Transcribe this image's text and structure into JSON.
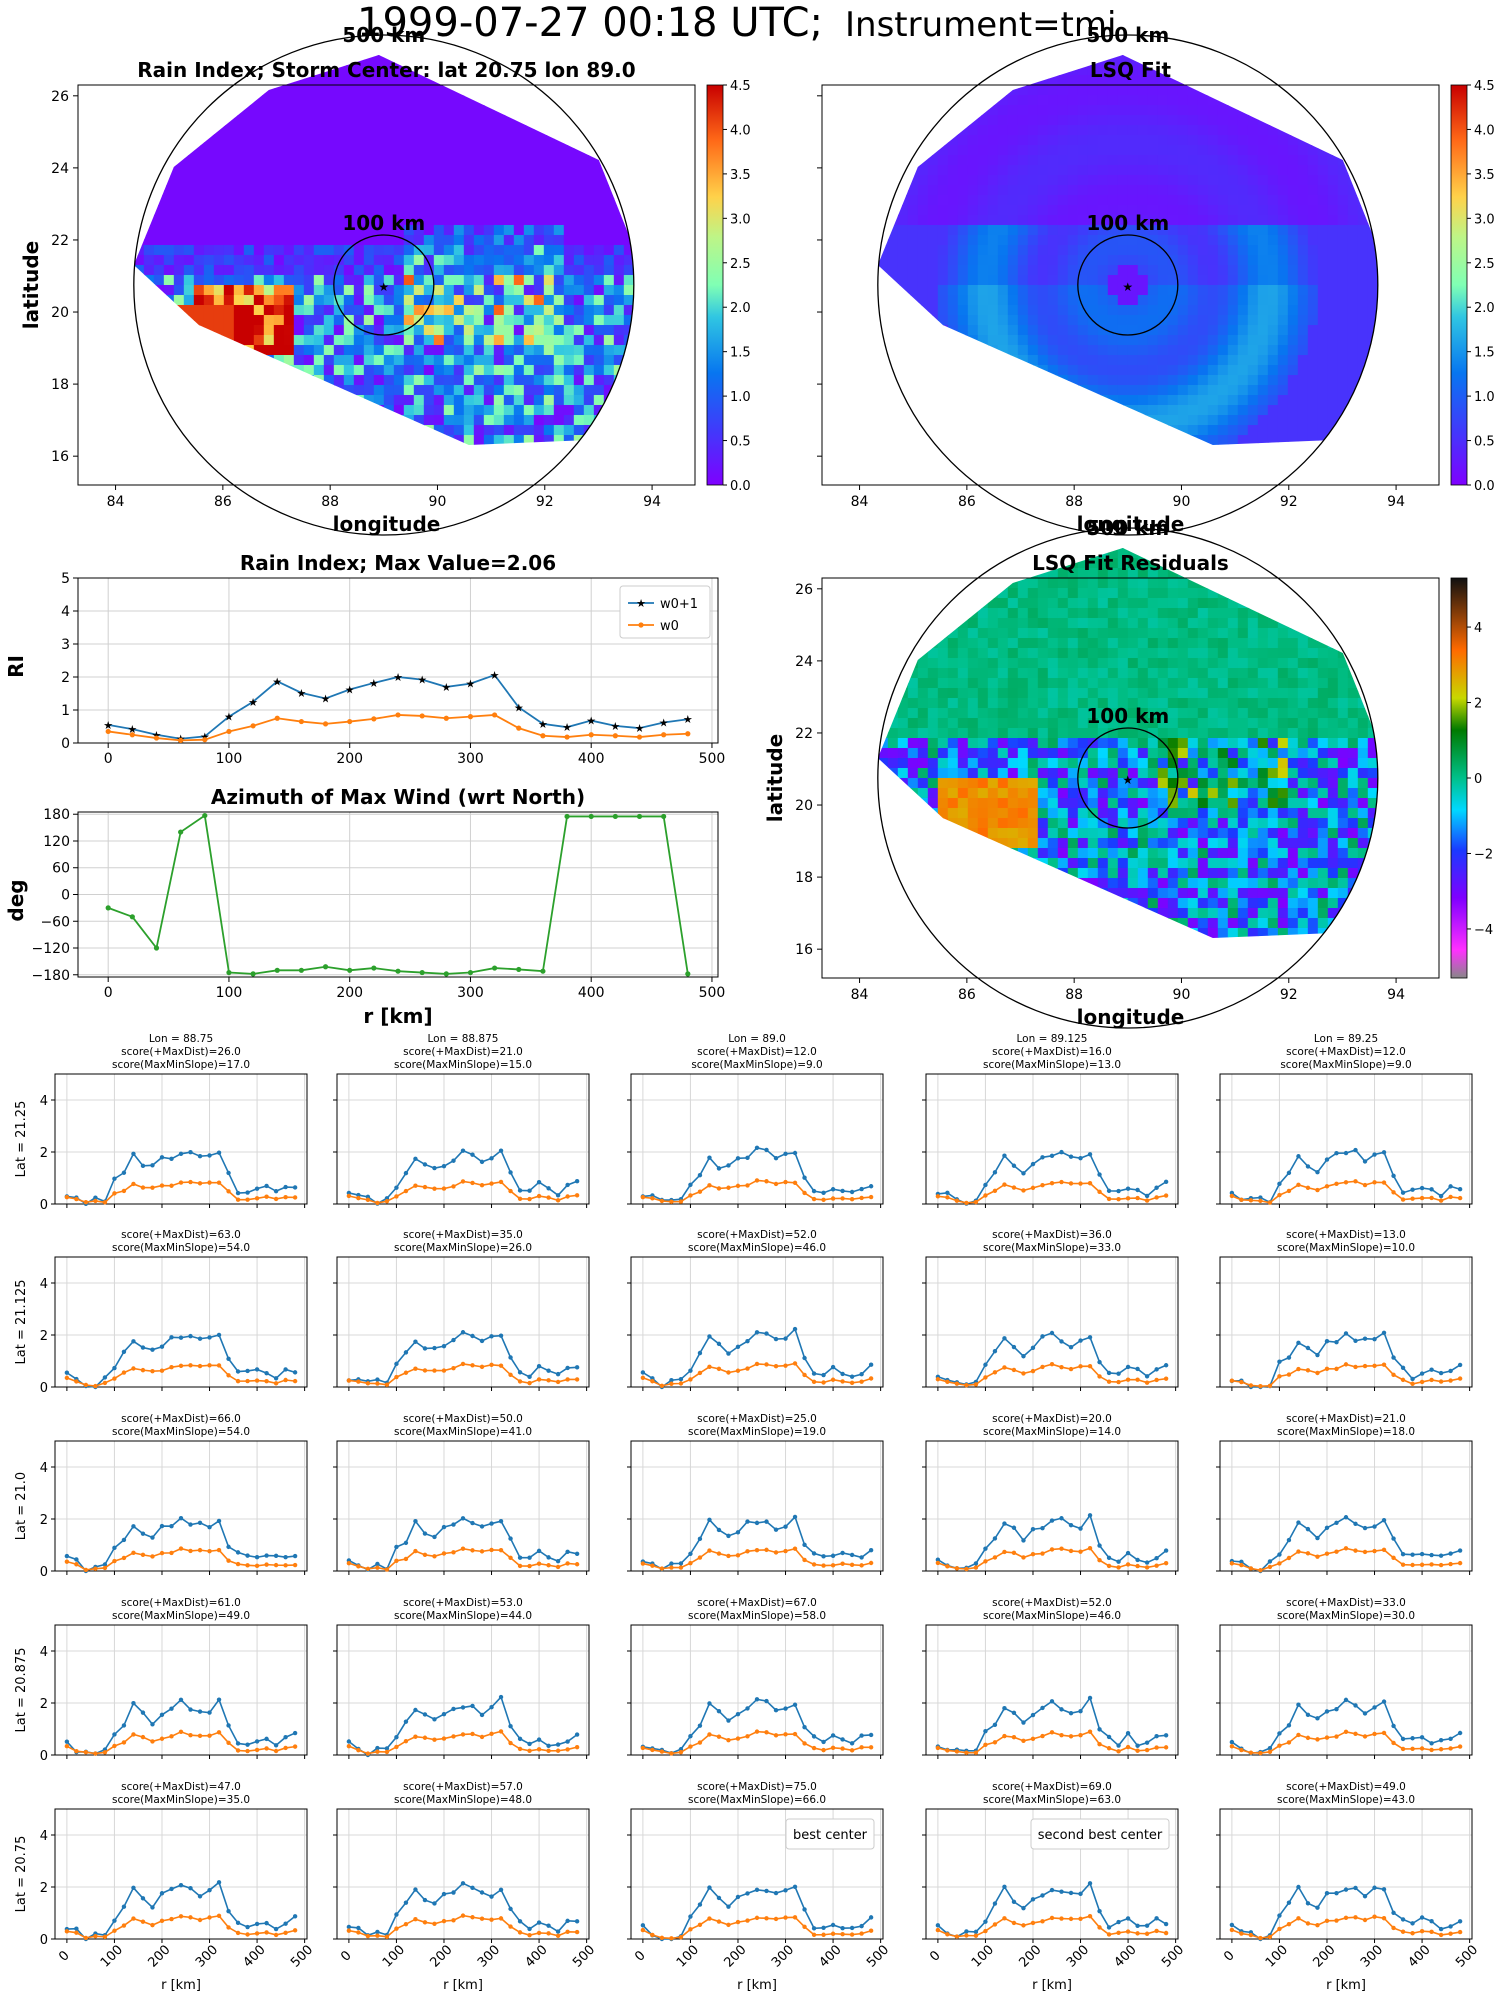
{
  "header": {
    "title_main": "1999-07-27 00:18 UTC;",
    "title_instr": "Instrument=tmi"
  },
  "map_panels": [
    {
      "title": "Rain Index; Storm Center: lat 20.75 lon 89.0",
      "xlabel": "longitude",
      "ylabel": "latitude",
      "xticks": [
        "84",
        "86",
        "88",
        "90",
        "92",
        "94"
      ],
      "yticks": [
        "16",
        "18",
        "20",
        "22",
        "24",
        "26"
      ],
      "ring_outer": "500 km",
      "ring_inner": "100 km",
      "colorbar": [
        "0.0",
        "0.5",
        "1.0",
        "1.5",
        "2.0",
        "2.5",
        "3.0",
        "3.5",
        "4.0",
        "4.5"
      ],
      "cmap": "rainbow"
    },
    {
      "title": "LSQ Fit",
      "xlabel": "longitude",
      "ylabel": "",
      "xticks": [
        "84",
        "86",
        "88",
        "90",
        "92",
        "94"
      ],
      "yticks": [],
      "ring_outer": "500 km",
      "ring_inner": "100 km",
      "colorbar": [
        "0.0",
        "0.5",
        "1.0",
        "1.5",
        "2.0",
        "2.5",
        "3.0",
        "3.5",
        "4.0",
        "4.5"
      ],
      "cmap": "rainbow"
    },
    {
      "title": "LSQ Fit Residuals",
      "xlabel": "longitude",
      "ylabel": "latitude",
      "xticks": [
        "84",
        "86",
        "88",
        "90",
        "92",
        "94"
      ],
      "yticks": [
        "16",
        "18",
        "20",
        "22",
        "24",
        "26"
      ],
      "ring_outer": "500 km",
      "ring_inner": "100 km",
      "colorbar": [
        "4",
        "2",
        "0",
        "−2",
        "−4"
      ],
      "cmap": "diverging"
    }
  ],
  "storm_center": {
    "lat": 20.75,
    "lon": 89.0
  },
  "colors": {
    "w0p1": "#1f77b4",
    "w0": "#ff7f0e",
    "azimuth": "#2ca02c",
    "best": "#800080",
    "second": "#ff0000",
    "map_bg": "#7a1ee8",
    "resid_bg": "#00b886"
  },
  "chart_data": [
    {
      "type": "line",
      "title": "Rain Index; Max Value=2.06",
      "xlabel": "",
      "ylabel": "RI",
      "xlim": [
        -25,
        505
      ],
      "ylim": [
        0,
        5
      ],
      "xticks": [
        "0",
        "100",
        "200",
        "300",
        "400",
        "500"
      ],
      "yticks": [
        "0",
        "1",
        "2",
        "3",
        "4",
        "5"
      ],
      "legend": "top-right",
      "x": [
        0,
        20,
        40,
        60,
        80,
        100,
        120,
        140,
        160,
        180,
        200,
        220,
        240,
        260,
        280,
        300,
        320,
        340,
        360,
        380,
        400,
        420,
        440,
        460,
        480
      ],
      "series": [
        {
          "name": "w0+1",
          "values": [
            0.55,
            0.42,
            0.25,
            0.13,
            0.2,
            0.8,
            1.25,
            1.87,
            1.52,
            1.35,
            1.62,
            1.82,
            2.0,
            1.92,
            1.7,
            1.8,
            2.06,
            1.08,
            0.58,
            0.48,
            0.68,
            0.52,
            0.45,
            0.62,
            0.72
          ]
        },
        {
          "name": "w0",
          "values": [
            0.35,
            0.25,
            0.15,
            0.08,
            0.1,
            0.35,
            0.52,
            0.75,
            0.65,
            0.58,
            0.65,
            0.73,
            0.85,
            0.82,
            0.75,
            0.8,
            0.85,
            0.45,
            0.22,
            0.18,
            0.25,
            0.22,
            0.18,
            0.25,
            0.28
          ]
        }
      ]
    },
    {
      "type": "line",
      "title": "Azimuth of Max Wind (wrt North)",
      "xlabel": "r [km]",
      "ylabel": "deg",
      "xlim": [
        -25,
        505
      ],
      "ylim": [
        -185,
        185
      ],
      "xticks": [
        "0",
        "100",
        "200",
        "300",
        "400",
        "500"
      ],
      "yticks": [
        "180",
        "120",
        "60",
        "0",
        "−60",
        "−120",
        "−180"
      ],
      "x": [
        0,
        20,
        40,
        60,
        80,
        100,
        120,
        140,
        160,
        180,
        200,
        220,
        240,
        260,
        280,
        300,
        320,
        340,
        360,
        380,
        400,
        420,
        440,
        460,
        480
      ],
      "series": [
        {
          "values": [
            -30,
            -50,
            -120,
            140,
            177,
            -175,
            -178,
            -170,
            -170,
            -162,
            -170,
            -165,
            -172,
            -175,
            -178,
            -175,
            -165,
            -168,
            -172,
            175,
            175,
            175,
            175,
            175,
            -178
          ]
        }
      ]
    }
  ],
  "grid": {
    "row_labels": [
      "Lat = 21.25",
      "Lat = 21.125",
      "Lat = 21.0",
      "Lat = 20.875",
      "Lat = 20.75"
    ],
    "col_titles": [
      "Lon = 88.75",
      "Lon = 88.875",
      "Lon = 89.0",
      "Lon = 89.125",
      "Lon = 89.25"
    ],
    "xticks": [
      "0",
      "100",
      "200",
      "300",
      "400",
      "500"
    ],
    "yticks": [
      "0",
      "2",
      "4"
    ],
    "xlabel": "r [km]",
    "scores": [
      [
        [
          "score(+MaxDist)=26.0",
          "score(MaxMinSlope)=17.0"
        ],
        [
          "score(+MaxDist)=21.0",
          "score(MaxMinSlope)=15.0"
        ],
        [
          "score(+MaxDist)=12.0",
          "score(MaxMinSlope)=9.0"
        ],
        [
          "score(+MaxDist)=16.0",
          "score(MaxMinSlope)=13.0"
        ],
        [
          "score(+MaxDist)=12.0",
          "score(MaxMinSlope)=9.0"
        ]
      ],
      [
        [
          "score(+MaxDist)=63.0",
          "score(MaxMinSlope)=54.0"
        ],
        [
          "score(+MaxDist)=35.0",
          "score(MaxMinSlope)=26.0"
        ],
        [
          "score(+MaxDist)=52.0",
          "score(MaxMinSlope)=46.0"
        ],
        [
          "score(+MaxDist)=36.0",
          "score(MaxMinSlope)=33.0"
        ],
        [
          "score(+MaxDist)=13.0",
          "score(MaxMinSlope)=10.0"
        ]
      ],
      [
        [
          "score(+MaxDist)=66.0",
          "score(MaxMinSlope)=54.0"
        ],
        [
          "score(+MaxDist)=50.0",
          "score(MaxMinSlope)=41.0"
        ],
        [
          "score(+MaxDist)=25.0",
          "score(MaxMinSlope)=19.0"
        ],
        [
          "score(+MaxDist)=20.0",
          "score(MaxMinSlope)=14.0"
        ],
        [
          "score(+MaxDist)=21.0",
          "score(MaxMinSlope)=18.0"
        ]
      ],
      [
        [
          "score(+MaxDist)=61.0",
          "score(MaxMinSlope)=49.0"
        ],
        [
          "score(+MaxDist)=53.0",
          "score(MaxMinSlope)=44.0"
        ],
        [
          "score(+MaxDist)=67.0",
          "score(MaxMinSlope)=58.0"
        ],
        [
          "score(+MaxDist)=52.0",
          "score(MaxMinSlope)=46.0"
        ],
        [
          "score(+MaxDist)=33.0",
          "score(MaxMinSlope)=30.0"
        ]
      ],
      [
        [
          "score(+MaxDist)=47.0",
          "score(MaxMinSlope)=35.0"
        ],
        [
          "score(+MaxDist)=57.0",
          "score(MaxMinSlope)=48.0"
        ],
        [
          "score(+MaxDist)=75.0",
          "score(MaxMinSlope)=66.0"
        ],
        [
          "score(+MaxDist)=69.0",
          "score(MaxMinSlope)=63.0"
        ],
        [
          "score(+MaxDist)=49.0",
          "score(MaxMinSlope)=43.0"
        ]
      ]
    ],
    "highlight": {
      "best": [
        4,
        2
      ],
      "second": [
        4,
        3
      ]
    },
    "best_label": "best center",
    "second_label": "second best center"
  }
}
